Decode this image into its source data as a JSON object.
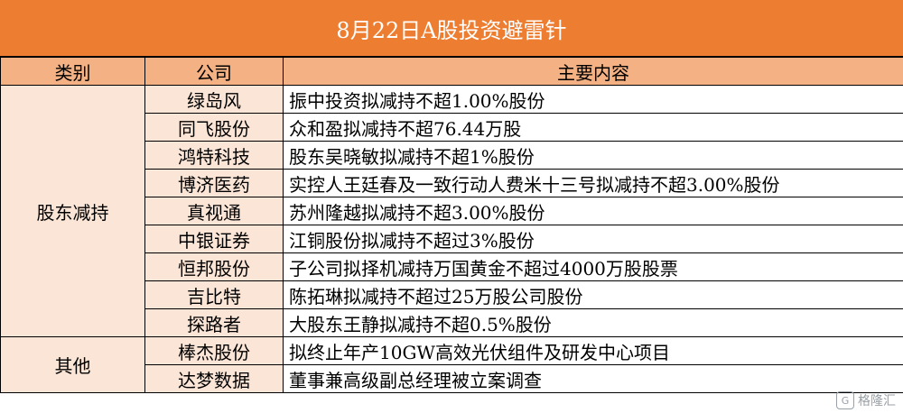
{
  "title": "8月22日A股投资避雷针",
  "headers": {
    "category": "类别",
    "company": "公司",
    "content": "主要内容"
  },
  "groups": [
    {
      "category": "股东减持",
      "rows": [
        {
          "company": "绿岛风",
          "content": "振中投资拟减持不超1.00%股份"
        },
        {
          "company": "同飞股份",
          "content": "众和盈拟减持不超76.44万股"
        },
        {
          "company": "鸿特科技",
          "content": "股东吴晓敏拟减持不超1%股份"
        },
        {
          "company": "博济医药",
          "content": "实控人王廷春及一致行动人费米十三号拟减持不超3.00%股份"
        },
        {
          "company": "真视通",
          "content": "苏州隆越拟减持不超3.00%股份"
        },
        {
          "company": "中银证券",
          "content": "江铜股份拟减持不超过3%股份"
        },
        {
          "company": "恒邦股份",
          "content": "子公司拟择机减持万国黄金不超过4000万股股票"
        },
        {
          "company": "吉比特",
          "content": "陈拓琳拟减持不超过25万股公司股份"
        },
        {
          "company": "探路者",
          "content": "大股东王静拟减持不超0.5%股份"
        }
      ]
    },
    {
      "category": "其他",
      "rows": [
        {
          "company": "棒杰股份",
          "content": "拟终止年产10GW高效光伏组件及研发中心项目"
        },
        {
          "company": "达梦数据",
          "content": "董事兼高级副总经理被立案调查"
        }
      ]
    }
  ],
  "watermark": {
    "text": "格隆汇",
    "icon": "gelonghui-logo-icon",
    "icon_glyph": "G"
  }
}
